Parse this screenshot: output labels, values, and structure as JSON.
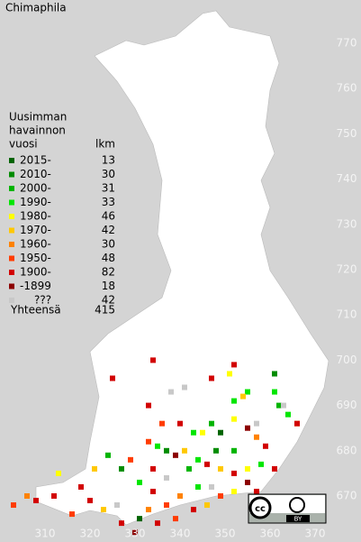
{
  "title": "Chimaphila",
  "legend": {
    "header": [
      "Uusimman",
      "havainnon",
      "vuosi"
    ],
    "count_header": "lkm",
    "items": [
      {
        "label": "2015-",
        "count": 13,
        "color": "#006400"
      },
      {
        "label": "2010-",
        "count": 30,
        "color": "#008c00"
      },
      {
        "label": "2000-",
        "count": 31,
        "color": "#00b400"
      },
      {
        "label": "1990-",
        "count": 33,
        "color": "#00e600"
      },
      {
        "label": "1980-",
        "count": 46,
        "color": "#ffff00"
      },
      {
        "label": "1970-",
        "count": 42,
        "color": "#ffc800"
      },
      {
        "label": "1960-",
        "count": 30,
        "color": "#ff8200"
      },
      {
        "label": "1950-",
        "count": 48,
        "color": "#ff3c00"
      },
      {
        "label": "1900-",
        "count": 82,
        "color": "#d20000"
      },
      {
        "label": "-1899",
        "count": 18,
        "color": "#8c0000"
      },
      {
        "label": "???",
        "count": 42,
        "color": "#c8c8c8"
      }
    ],
    "total": {
      "label": "Yhteensä",
      "count": 415
    }
  },
  "xticks": [
    310,
    320,
    330,
    340,
    350,
    360,
    370
  ],
  "yticks": [
    770,
    760,
    750,
    740,
    730,
    720,
    710,
    700,
    690,
    680,
    670
  ],
  "squares": [
    [
      325,
      696,
      8
    ],
    [
      333,
      690,
      8
    ],
    [
      347,
      696,
      8
    ],
    [
      352,
      699,
      8
    ],
    [
      351,
      697,
      4
    ],
    [
      355,
      693,
      3
    ],
    [
      354,
      692,
      5
    ],
    [
      361,
      697,
      1
    ],
    [
      361,
      693,
      3
    ],
    [
      362,
      690,
      2
    ],
    [
      364,
      688,
      3
    ],
    [
      366,
      686,
      5
    ],
    [
      341,
      694,
      10
    ],
    [
      338,
      693,
      10
    ],
    [
      336,
      686,
      7
    ],
    [
      340,
      686,
      8
    ],
    [
      343,
      684,
      3
    ],
    [
      347,
      686,
      2
    ],
    [
      349,
      684,
      0
    ],
    [
      352,
      687,
      4
    ],
    [
      355,
      685,
      9
    ],
    [
      357,
      683,
      6
    ],
    [
      359,
      681,
      8
    ],
    [
      333,
      682,
      7
    ],
    [
      335,
      681,
      3
    ],
    [
      337,
      680,
      1
    ],
    [
      339,
      679,
      9
    ],
    [
      341,
      680,
      5
    ],
    [
      344,
      678,
      3
    ],
    [
      346,
      677,
      8
    ],
    [
      349,
      676,
      5
    ],
    [
      352,
      675,
      8
    ],
    [
      355,
      676,
      4
    ],
    [
      358,
      677,
      3
    ],
    [
      361,
      676,
      8
    ],
    [
      329,
      678,
      7
    ],
    [
      327,
      676,
      1
    ],
    [
      324,
      679,
      2
    ],
    [
      321,
      676,
      5
    ],
    [
      318,
      672,
      8
    ],
    [
      320,
      669,
      8
    ],
    [
      323,
      667,
      5
    ],
    [
      316,
      666,
      7
    ],
    [
      312,
      670,
      8
    ],
    [
      308,
      669,
      8
    ],
    [
      306,
      670,
      6
    ],
    [
      303,
      668,
      7
    ],
    [
      313,
      675,
      4
    ],
    [
      331,
      673,
      3
    ],
    [
      334,
      671,
      8
    ],
    [
      337,
      668,
      7
    ],
    [
      340,
      670,
      6
    ],
    [
      343,
      667,
      8
    ],
    [
      346,
      668,
      5
    ],
    [
      349,
      670,
      7
    ],
    [
      352,
      671,
      4
    ],
    [
      355,
      673,
      9
    ],
    [
      357,
      671,
      8
    ],
    [
      331,
      665,
      0
    ],
    [
      335,
      664,
      8
    ],
    [
      339,
      665,
      7
    ],
    [
      333,
      667,
      6
    ],
    [
      327,
      664,
      8
    ],
    [
      330,
      662,
      9
    ],
    [
      337,
      674,
      10
    ],
    [
      347,
      672,
      10
    ],
    [
      357,
      686,
      10
    ],
    [
      363,
      690,
      10
    ],
    [
      366,
      686,
      8
    ],
    [
      342,
      676,
      2
    ],
    [
      344,
      672,
      3
    ],
    [
      348,
      680,
      1
    ],
    [
      352,
      680,
      2
    ],
    [
      334,
      676,
      8
    ],
    [
      326,
      668,
      10
    ],
    [
      334,
      700,
      8
    ],
    [
      345,
      684,
      4
    ],
    [
      352,
      691,
      3
    ]
  ],
  "badge": {
    "cc": "cc",
    "by": "BY"
  }
}
